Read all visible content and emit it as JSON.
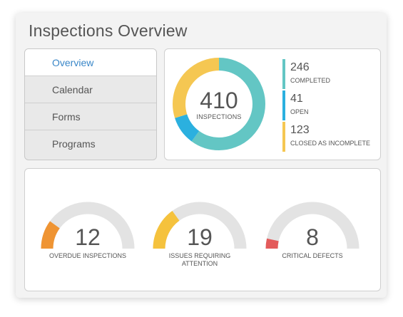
{
  "header": {
    "title": "Inspections Overview"
  },
  "nav": {
    "items": [
      {
        "label": "Overview",
        "active": true
      },
      {
        "label": "Calendar",
        "active": false
      },
      {
        "label": "Forms",
        "active": false
      },
      {
        "label": "Programs",
        "active": false
      }
    ]
  },
  "summary": {
    "total": "410",
    "total_label": "INSPECTIONS",
    "stats": [
      {
        "value": "246",
        "label": "COMPLETED",
        "color": "#63c6c4"
      },
      {
        "value": "41",
        "label": "OPEN",
        "color": "#2bb0df"
      },
      {
        "value": "123",
        "label": "CLOSED AS INCOMPLETE",
        "color": "#f5c752"
      }
    ]
  },
  "gauges": [
    {
      "value": "12",
      "label": "OVERDUE INSPECTIONS",
      "fill_fraction": 0.2,
      "color": "#ef9433"
    },
    {
      "value": "19",
      "label": "ISSUES REQUIRING ATTENTION",
      "fill_fraction": 0.3,
      "color": "#f5c23d"
    },
    {
      "value": "8",
      "label": "CRITICAL DEFECTS",
      "fill_fraction": 0.07,
      "color": "#e35b5b"
    }
  ],
  "colors": {
    "track": "#e3e3e3",
    "accent": "#3a87c8"
  }
}
